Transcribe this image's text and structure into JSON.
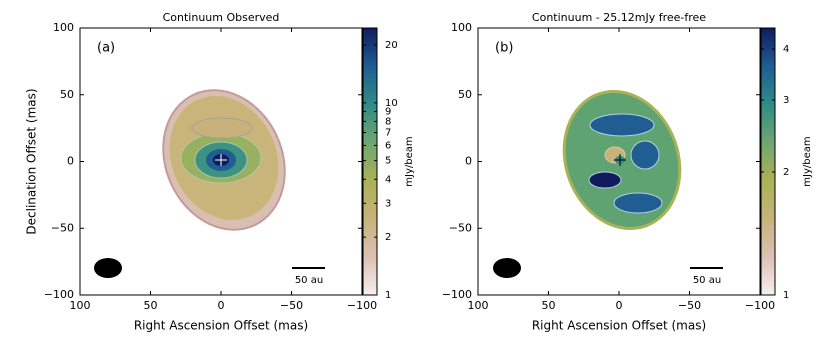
{
  "chart_data": [
    {
      "type": "image",
      "title": "Continuum Observed",
      "panel_label": "(a)",
      "xlabel": "Right Ascension Offset (mas)",
      "ylabel": "Declination Offset (mas)",
      "xlim": [
        100,
        -100
      ],
      "ylim": [
        -100,
        100
      ],
      "xticks": [
        100,
        50,
        0,
        {
          "value": -50,
          "label": "−50"
        },
        {
          "value": -100,
          "label": "−100"
        }
      ],
      "yticks": [
        {
          "value": -100,
          "label": "−100"
        },
        {
          "value": -50,
          "label": "−50"
        },
        0,
        50,
        100
      ],
      "colorbar": {
        "label": "mJy/beam",
        "scale": "log",
        "lim": [
          1,
          24.5
        ],
        "ticks": [
          1,
          2,
          3,
          4,
          5,
          6,
          7,
          8,
          9,
          10,
          20
        ],
        "colormap": [
          "#f6efec",
          "#dcc0b4",
          "#c8b27a",
          "#a9b257",
          "#6fa670",
          "#2f8c87",
          "#1f5d93",
          "#101c5e"
        ]
      },
      "scalebar_label": "50 au"
    },
    {
      "type": "image",
      "title": "Continuum - 25.12mJy free-free",
      "panel_label": "(b)",
      "xlabel": "Right Ascension Offset (mas)",
      "xlim": [
        100,
        -100
      ],
      "ylim": [
        -100,
        100
      ],
      "xticks": [
        100,
        50,
        0,
        {
          "value": -50,
          "label": "−50"
        },
        {
          "value": -100,
          "label": "−100"
        }
      ],
      "yticks": [
        {
          "value": -100,
          "label": "−100"
        },
        {
          "value": -50,
          "label": "−50"
        },
        0,
        50,
        100
      ],
      "colorbar": {
        "label": "mJy/beam",
        "scale": "log",
        "lim": [
          1,
          4.5
        ],
        "ticks": [
          1,
          2,
          3,
          4
        ],
        "colormap": [
          "#f6efec",
          "#dcc0b4",
          "#c8b27a",
          "#a9b257",
          "#6fa670",
          "#2f8c87",
          "#1f5d93",
          "#101c5e"
        ]
      },
      "scalebar_label": "50 au"
    }
  ]
}
